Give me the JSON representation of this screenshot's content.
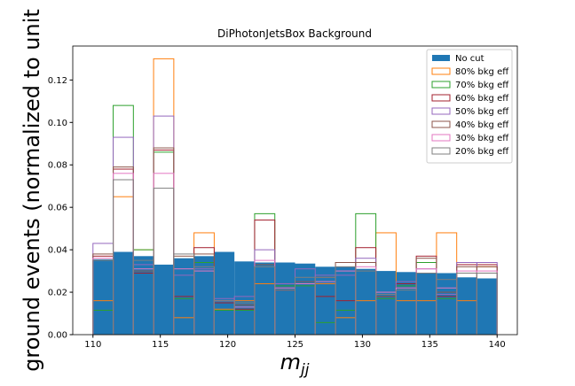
{
  "chart_data": {
    "type": "histogram",
    "title": "DiPhotonJetsBox Background",
    "xlabel": {
      "main": "m",
      "sub": "jj"
    },
    "ylabel": "ground events (normalized to unit",
    "bins": [
      110,
      111.5,
      113,
      114.5,
      116,
      117.5,
      119,
      120.5,
      122,
      123.5,
      125,
      126.5,
      128,
      129.5,
      131,
      132.5,
      134,
      135.5,
      137,
      138.5,
      140
    ],
    "xlim": [
      108.5,
      141.5
    ],
    "xticks": [
      110,
      115,
      120,
      125,
      130,
      135,
      140
    ],
    "ylim": [
      0,
      0.136
    ],
    "yticks": [
      {
        "value": 0,
        "label": "0.00"
      },
      {
        "value": 0.02,
        "label": "0.02"
      },
      {
        "value": 0.04,
        "label": "0.04"
      },
      {
        "value": 0.06,
        "label": "0.06"
      },
      {
        "value": 0.08,
        "label": "0.08"
      },
      {
        "value": 0.1,
        "label": "0.10"
      },
      {
        "value": 0.12,
        "label": "0.12"
      }
    ],
    "legend": "upper right",
    "series": [
      {
        "name": "No cut",
        "color": "#1f77b4",
        "filled": true,
        "values": [
          0.0355,
          0.039,
          0.037,
          0.033,
          0.036,
          0.037,
          0.039,
          0.0345,
          0.034,
          0.034,
          0.0335,
          0.032,
          0.032,
          0.031,
          0.03,
          0.0295,
          0.029,
          0.029,
          0.027,
          0.0265
        ]
      },
      {
        "name": "80% bkg eff",
        "color": "#ff7f0e",
        "filled": false,
        "values": [
          0.016,
          0.065,
          0.04,
          0.13,
          0.008,
          0.048,
          0.012,
          0.016,
          0.024,
          0.024,
          0.024,
          0.024,
          0.008,
          0.016,
          0.048,
          0.016,
          0.016,
          0.048,
          0.016,
          0.032
        ]
      },
      {
        "name": "70% bkg eff",
        "color": "#2ca02c",
        "filled": false,
        "values": [
          0.0115,
          0.108,
          0.04,
          0.086,
          0.017,
          0.034,
          0.0115,
          0.0115,
          0.057,
          0.023,
          0.023,
          0.0057,
          0.0115,
          0.057,
          0.017,
          0.023,
          0.034,
          0.017,
          0.029,
          0.029
        ]
      },
      {
        "name": "60% bkg eff",
        "color": "#a3202f",
        "filled": false,
        "values": [
          0.037,
          0.078,
          0.029,
          0.087,
          0.018,
          0.041,
          0.015,
          0.012,
          0.054,
          0.021,
          0.024,
          0.018,
          0.016,
          0.041,
          0.018,
          0.024,
          0.037,
          0.018,
          0.033,
          0.033
        ]
      },
      {
        "name": "50% bkg eff",
        "color": "#9467bd",
        "filled": false,
        "values": [
          0.043,
          0.093,
          0.033,
          0.103,
          0.028,
          0.031,
          0.017,
          0.018,
          0.04,
          0.024,
          0.031,
          0.028,
          0.028,
          0.036,
          0.02,
          0.025,
          0.031,
          0.019,
          0.034,
          0.034
        ]
      },
      {
        "name": "40% bkg eff",
        "color": "#8c564b",
        "filled": false,
        "values": [
          0.038,
          0.079,
          0.03,
          0.088,
          0.037,
          0.038,
          0.016,
          0.014,
          0.033,
          0.022,
          0.025,
          0.027,
          0.034,
          0.034,
          0.018,
          0.022,
          0.036,
          0.02,
          0.032,
          0.032
        ]
      },
      {
        "name": "30% bkg eff",
        "color": "#e377c2",
        "filled": false,
        "values": [
          0.036,
          0.076,
          0.031,
          0.076,
          0.031,
          0.03,
          0.016,
          0.013,
          0.035,
          0.022,
          0.024,
          0.025,
          0.03,
          0.032,
          0.02,
          0.022,
          0.031,
          0.022,
          0.03,
          0.03
        ]
      },
      {
        "name": "20% bkg eff",
        "color": "#7f7f7f",
        "filled": false,
        "values": [
          0.035,
          0.073,
          0.035,
          0.069,
          0.038,
          0.032,
          0.016,
          0.015,
          0.032,
          0.021,
          0.027,
          0.027,
          0.032,
          0.03,
          0.019,
          0.021,
          0.029,
          0.026,
          0.029,
          0.029
        ]
      }
    ]
  }
}
